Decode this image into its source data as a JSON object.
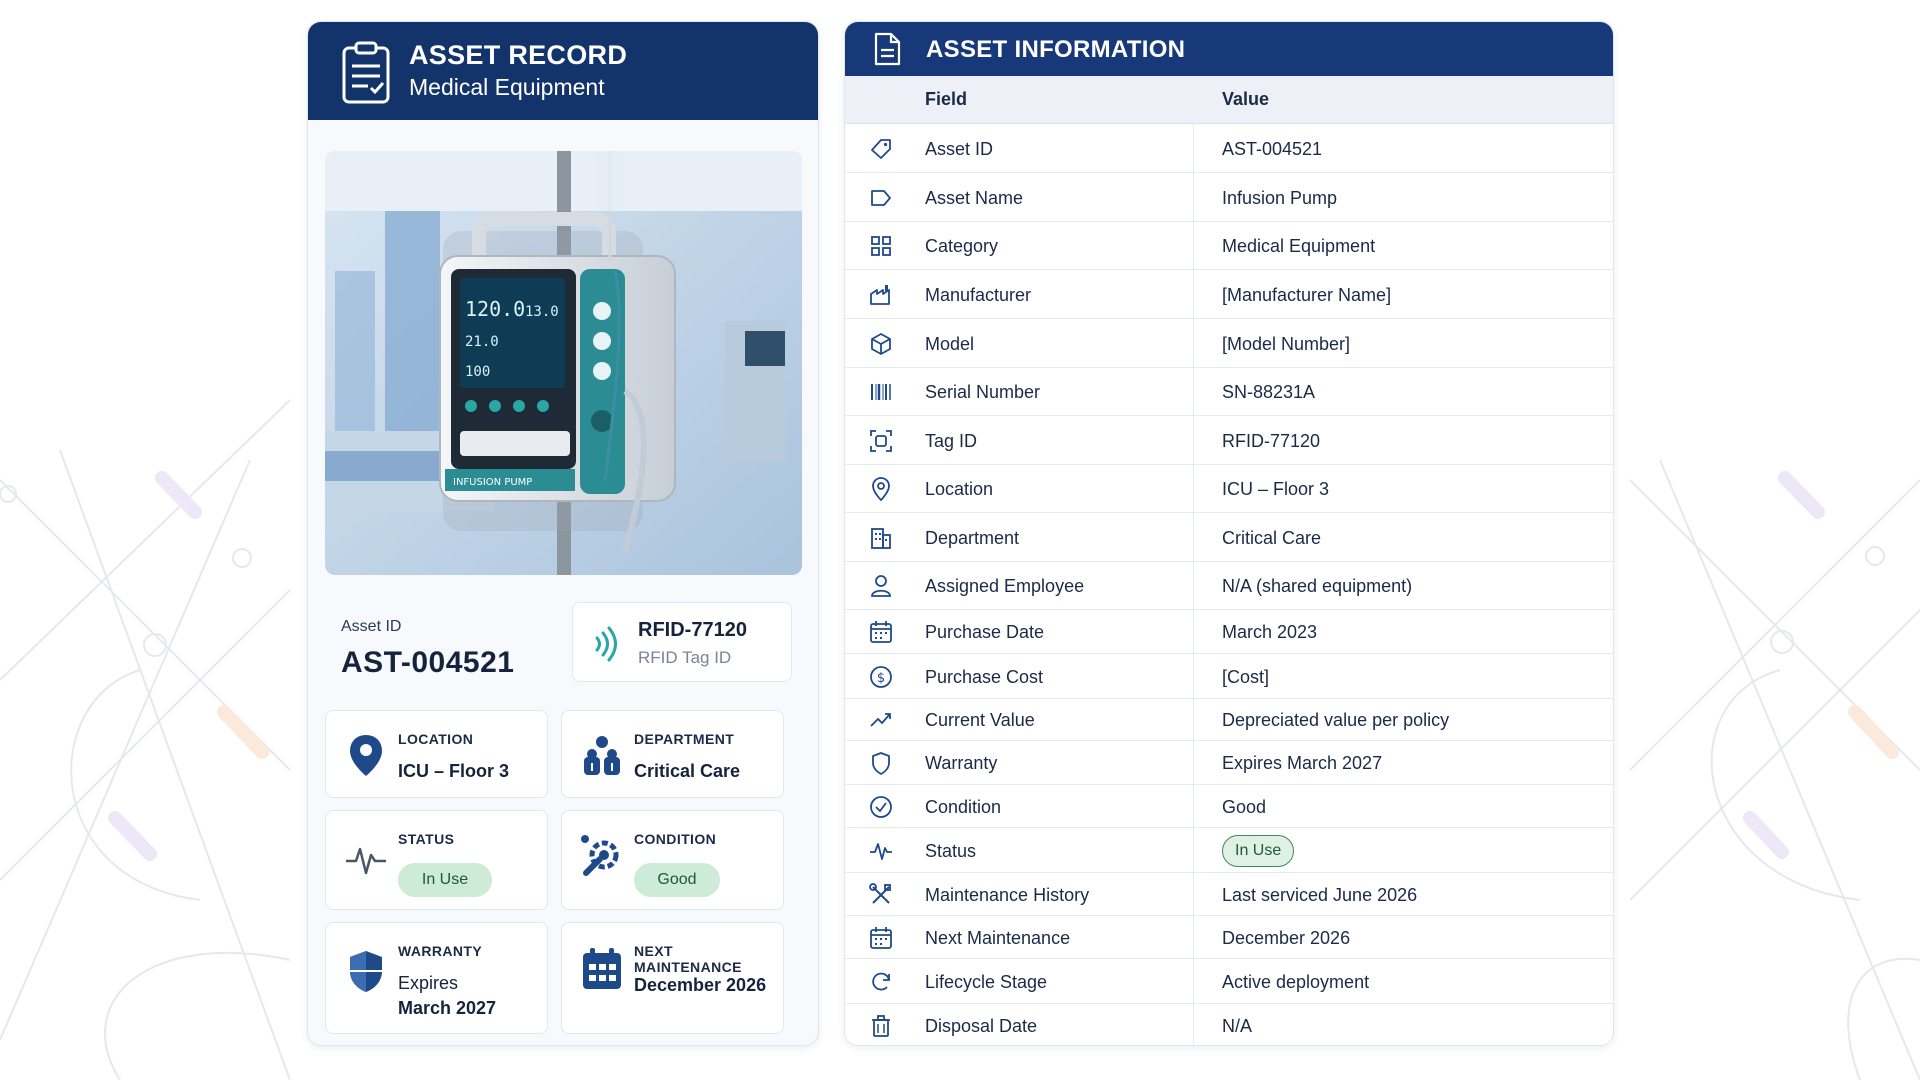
{
  "record": {
    "title": "ASSET RECORD",
    "subtitle": "Medical Equipment",
    "photo_device_label": "INFUSION PUMP",
    "photo_readings": [
      "120.0",
      "13.0",
      "21.0",
      "100"
    ],
    "asset_id_label": "Asset ID",
    "asset_id_value": "AST-004521",
    "rfid_value": "RFID-77120",
    "rfid_label": "RFID Tag ID",
    "tiles": {
      "location": {
        "label": "LOCATION",
        "value": "ICU – Floor 3",
        "icon": "map-pin-icon"
      },
      "department": {
        "label": "DEPARTMENT",
        "value": "Critical Care",
        "icon": "staff-group-icon"
      },
      "status": {
        "label": "STATUS",
        "value": "In Use",
        "icon": "pulse-icon"
      },
      "condition": {
        "label": "CONDITION",
        "value": "Good",
        "icon": "wrench-gear-icon"
      },
      "warranty": {
        "label": "WARRANTY",
        "value_line1": "Expires",
        "value_line2": "March 2027",
        "icon": "shield-icon"
      },
      "next_maintenance": {
        "label": "NEXT MAINTENANCE",
        "value": "December 2026",
        "icon": "calendar-icon"
      }
    }
  },
  "info": {
    "title": "ASSET INFORMATION",
    "col_field": "Field",
    "col_value": "Value",
    "rows": [
      {
        "field": "Asset ID",
        "value": "AST-004521",
        "icon": "tag-icon"
      },
      {
        "field": "Asset Name",
        "value": "Infusion Pump",
        "icon": "label-icon"
      },
      {
        "field": "Category",
        "value": "Medical Equipment",
        "icon": "grid-icon"
      },
      {
        "field": "Manufacturer",
        "value": "[Manufacturer Name]",
        "icon": "factory-icon"
      },
      {
        "field": "Model",
        "value": "[Model Number]",
        "icon": "cube-icon"
      },
      {
        "field": "Serial Number",
        "value": "SN-88231A",
        "icon": "barcode-icon"
      },
      {
        "field": "Tag ID",
        "value": "RFID-77120",
        "icon": "scan-tag-icon"
      },
      {
        "field": "Location",
        "value": "ICU – Floor 3",
        "icon": "map-pin-icon"
      },
      {
        "field": "Department",
        "value": "Critical Care",
        "icon": "building-icon"
      },
      {
        "field": "Assigned Employee",
        "value": "N/A (shared equipment)",
        "icon": "user-icon"
      },
      {
        "field": "Purchase Date",
        "value": "March 2023",
        "icon": "calendar-icon"
      },
      {
        "field": "Purchase Cost",
        "value": "[Cost]",
        "icon": "dollar-icon"
      },
      {
        "field": "Current Value",
        "value": "Depreciated value per policy",
        "icon": "trend-icon"
      },
      {
        "field": "Warranty",
        "value": "Expires March 2027",
        "icon": "shield-icon"
      },
      {
        "field": "Condition",
        "value": "Good",
        "icon": "check-circle-icon"
      },
      {
        "field": "Status",
        "value": "In Use",
        "icon": "pulse-icon"
      },
      {
        "field": "Maintenance History",
        "value": "Last serviced June 2026",
        "icon": "tools-icon"
      },
      {
        "field": "Next Maintenance",
        "value": "December 2026",
        "icon": "calendar-icon"
      },
      {
        "field": "Lifecycle Stage",
        "value": "Active deployment",
        "icon": "refresh-icon"
      },
      {
        "field": "Disposal Date",
        "value": "N/A",
        "icon": "trash-icon"
      }
    ]
  },
  "colors": {
    "navy": "#13346b",
    "header_blue": "#17397a",
    "accent_teal": "#2aa6a6",
    "status_green": "#cdebd6"
  }
}
